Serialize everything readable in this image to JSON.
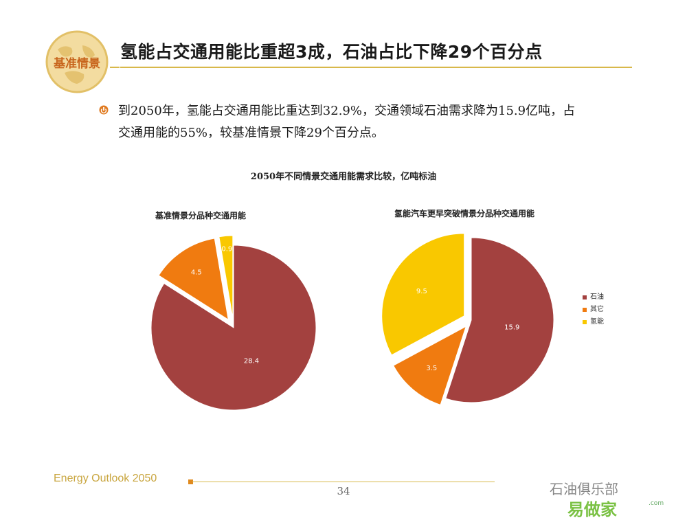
{
  "logo_text": "基准情景",
  "title": "氢能占交通用能比重超3成，石油占比下降29个百分点",
  "bullet": {
    "line1": "到2050年，氢能占交通用能比重达到32.9%，交通领域石油需求降为15.9亿吨，占",
    "line2": "交通用能的55%，较基准情景下降29个百分点。"
  },
  "chart_data": [
    {
      "type": "pie",
      "super_title": "2050年不同情景交通用能需求比较，亿吨标油",
      "title": "基准情景分品种交通用能",
      "slices": [
        {
          "label": "石油",
          "value": 28.4,
          "color": "#a3413f"
        },
        {
          "label": "其它",
          "value": 4.5,
          "color": "#f07b10"
        },
        {
          "label": "氢能",
          "value": 0.9,
          "color": "#f9c800"
        }
      ]
    },
    {
      "type": "pie",
      "title": "氢能汽车更早突破情景分品种交通用能",
      "slices": [
        {
          "label": "石油",
          "value": 15.9,
          "color": "#a3413f"
        },
        {
          "label": "其它",
          "value": 3.5,
          "color": "#f07b10"
        },
        {
          "label": "氢能",
          "value": 9.5,
          "color": "#f9c800"
        }
      ],
      "legend": [
        "石油",
        "其它",
        "氢能"
      ],
      "legend_placement": "right"
    }
  ],
  "footer": {
    "left": "Energy Outlook 2050",
    "page": "34",
    "watermark": "石油俱乐部",
    "watermark_sub": "易做家",
    "watermark_com": ".com"
  },
  "colors": {
    "accent": "#d8b84a",
    "oil": "#a3413f",
    "other": "#f07b10",
    "hydrogen": "#f9c800"
  }
}
